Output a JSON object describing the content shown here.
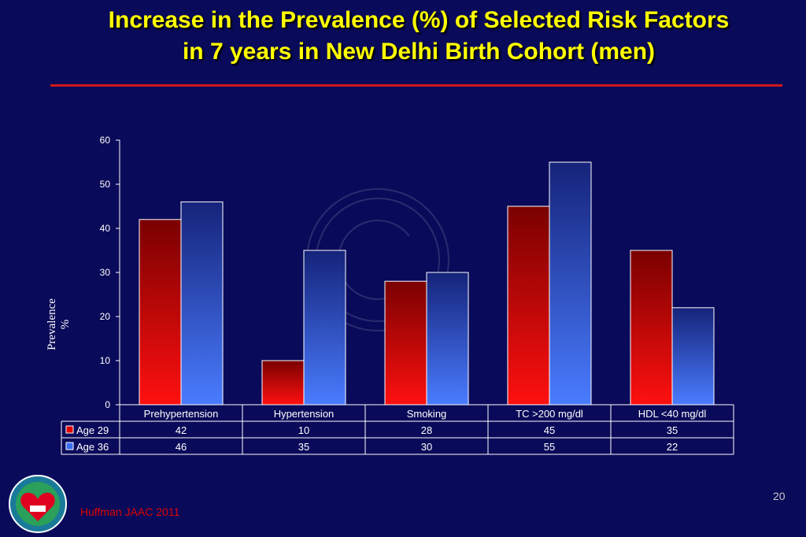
{
  "title_line1": "Increase in the Prevalence (%) of Selected Risk Factors",
  "title_line2": "in 7 years in New Delhi Birth Cohort (men)",
  "page_number": "20",
  "citation": "Huffman  JAAC 2011",
  "colors": {
    "title": "#ffff00",
    "background": "#0a0a5a",
    "rule": "#d01818",
    "series_age29": "#e00000",
    "series_age36": "#3a6cf0"
  },
  "chart_data": {
    "type": "bar",
    "title": "",
    "ylabel": "Prevalence %",
    "xlabel": "",
    "ylim": [
      0,
      60
    ],
    "yticks": [
      0,
      10,
      20,
      30,
      40,
      50,
      60
    ],
    "grid": false,
    "legend": "data-table-left",
    "categories": [
      "Prehypertension",
      "Hypertension",
      "Smoking",
      "TC >200 mg/dl",
      "HDL <40 mg/dl"
    ],
    "series": [
      {
        "name": "Age 29",
        "values": [
          42,
          10,
          28,
          45,
          35
        ]
      },
      {
        "name": "Age 36",
        "values": [
          46,
          35,
          30,
          55,
          22
        ]
      }
    ]
  }
}
